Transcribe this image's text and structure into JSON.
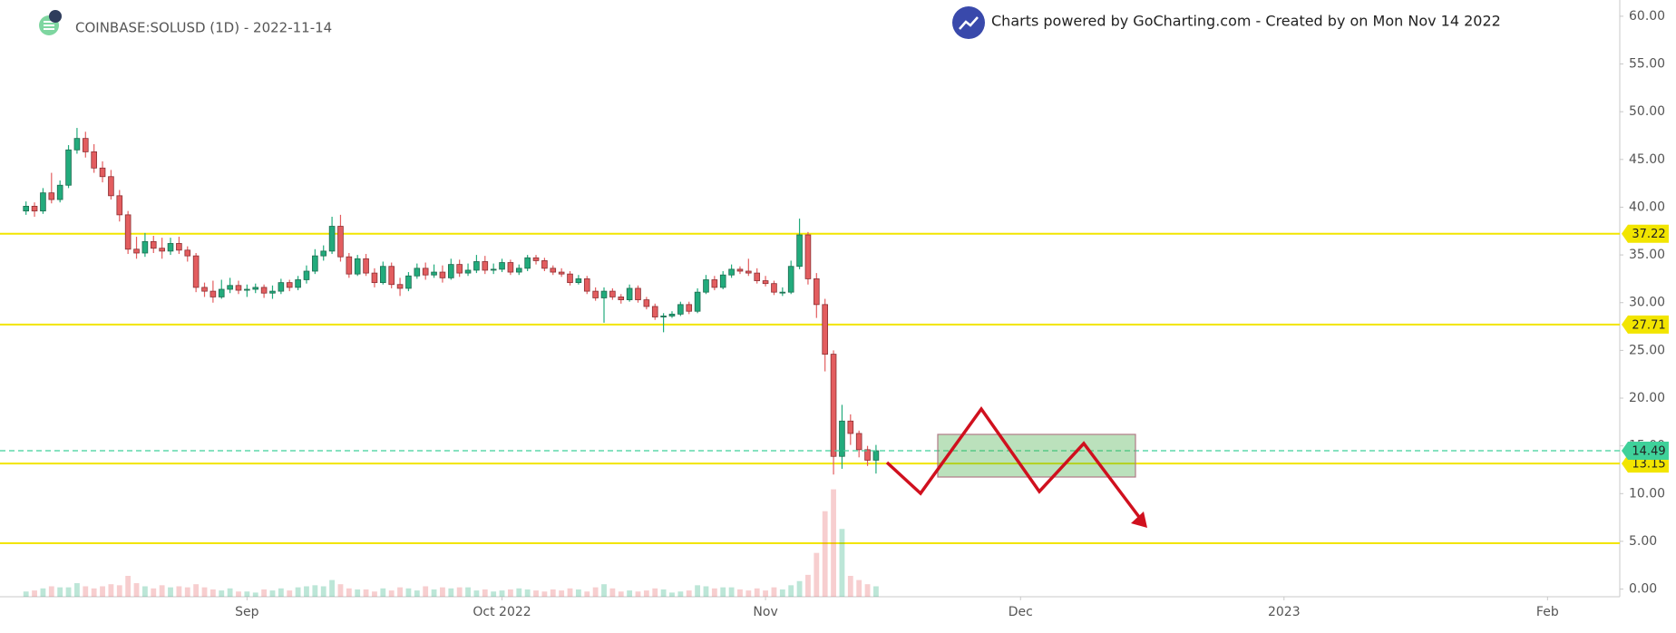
{
  "chart_data": {
    "type": "candlestick",
    "title": "COINBASE:SOLUSD (1D) - 2022-11-14",
    "subtitle": "Charts powered by GoCharting.com - Created by  on Mon Nov 14 2022",
    "up_color": "#22ab7c",
    "down_color": "#e35d5f",
    "level_color": "#f2e500",
    "last_color": "#3fd19a",
    "ylim": [
      -0.8,
      61.7
    ],
    "yticks": [
      {
        "value": 0,
        "label": "0.00"
      },
      {
        "value": 5,
        "label": "5.00"
      },
      {
        "value": 10,
        "label": "10.00"
      },
      {
        "value": 15,
        "label": "15.00"
      },
      {
        "value": 20,
        "label": "20.00"
      },
      {
        "value": 25,
        "label": "25.00"
      },
      {
        "value": 30,
        "label": "30.00"
      },
      {
        "value": 35,
        "label": "35.00"
      },
      {
        "value": 40,
        "label": "40.00"
      },
      {
        "value": 45,
        "label": "45.00"
      },
      {
        "value": 50,
        "label": "50.00"
      },
      {
        "value": 55,
        "label": "55.00"
      },
      {
        "value": 60,
        "label": "60.00"
      }
    ],
    "levels": [
      37.22,
      27.71,
      13.15
    ],
    "support_line": 4.8,
    "categories": [
      null,
      null,
      null,
      null,
      null,
      null,
      null,
      null,
      null,
      null,
      null,
      null,
      null,
      null,
      null,
      null,
      null,
      null,
      null,
      null,
      null,
      null,
      null,
      null,
      null,
      null,
      "Sep",
      null,
      null,
      null,
      null,
      null,
      null,
      null,
      null,
      null,
      null,
      null,
      null,
      null,
      null,
      null,
      null,
      null,
      null,
      null,
      null,
      null,
      null,
      null,
      null,
      null,
      null,
      null,
      null,
      null,
      "Oct 2022",
      null,
      null,
      null,
      null,
      null,
      null,
      null,
      null,
      null,
      null,
      null,
      null,
      null,
      null,
      null,
      null,
      null,
      null,
      null,
      null,
      null,
      null,
      null,
      null,
      null,
      null,
      null,
      null,
      null,
      null,
      "Nov",
      null,
      null,
      null,
      null,
      null,
      null,
      null,
      null,
      null,
      null,
      null,
      null,
      null,
      null,
      null,
      null,
      null,
      null,
      null,
      null,
      null,
      null,
      null,
      null,
      null,
      null,
      null,
      null,
      null,
      "Dec",
      null,
      null,
      null,
      null,
      null,
      null,
      null,
      null,
      null,
      null,
      null,
      null,
      null,
      null,
      null,
      null,
      null,
      null,
      null,
      null,
      null,
      null,
      null,
      null,
      null,
      null,
      null,
      null,
      null,
      null,
      "2023",
      null,
      null,
      null,
      null,
      null,
      null,
      null,
      null,
      null,
      null,
      null,
      null,
      null,
      null,
      null,
      null,
      null,
      null,
      null,
      null,
      null,
      null,
      null,
      null,
      null,
      null,
      null,
      null,
      null,
      null,
      "Feb",
      null,
      null,
      null,
      null,
      null,
      null,
      null,
      null
    ],
    "open": [
      39.6,
      40.1,
      39.6,
      41.5,
      40.8,
      42.3,
      46.0,
      47.2,
      45.8,
      44.1,
      43.2,
      41.2,
      39.2,
      35.6,
      35.2,
      36.4,
      35.7,
      35.4,
      36.2,
      35.5,
      34.9,
      31.6,
      31.2,
      30.6,
      31.4,
      31.8,
      31.3,
      31.4,
      31.6,
      31.0,
      31.2,
      32.1,
      31.6,
      32.4,
      33.3,
      34.9,
      35.4,
      38.0,
      34.8,
      33.0,
      34.6,
      33.1,
      32.1,
      33.8,
      31.9,
      31.5,
      32.8,
      33.6,
      32.9,
      33.2,
      32.6,
      34.0,
      33.1,
      33.4,
      34.3,
      33.4,
      33.5,
      34.2,
      33.2,
      33.6,
      34.7,
      34.4,
      33.6,
      33.2,
      33.0,
      32.1,
      32.5,
      31.2,
      30.5,
      31.2,
      30.6,
      30.3,
      31.5,
      30.3,
      29.6,
      28.5,
      28.6,
      28.8,
      29.8,
      29.1,
      31.1,
      32.4,
      31.6,
      32.9,
      33.5,
      33.3,
      33.1,
      32.3,
      32.0,
      31.1,
      31.1,
      33.8,
      37.1,
      32.5,
      29.8,
      24.6,
      13.9,
      17.6,
      16.3,
      14.6,
      13.5,
      null,
      null,
      null,
      null,
      null,
      null,
      null,
      null,
      null,
      null,
      null,
      null,
      null,
      null,
      null,
      null,
      null,
      null,
      null,
      null,
      null,
      null,
      null,
      null,
      null,
      null,
      null,
      null,
      null,
      null,
      null,
      null,
      null,
      null,
      null,
      null,
      null,
      null,
      null,
      null,
      null,
      null,
      null,
      null,
      null,
      null,
      null,
      null,
      null,
      null,
      null,
      null,
      null,
      null,
      null,
      null,
      null,
      null,
      null,
      null,
      null,
      null,
      null,
      null,
      null,
      null,
      null,
      null,
      null,
      null,
      null,
      null,
      null,
      null,
      null,
      null,
      null,
      null,
      null,
      null,
      null,
      null,
      null,
      null,
      null,
      null,
      null
    ],
    "high": [
      40.6,
      40.5,
      42.0,
      43.6,
      42.8,
      46.5,
      48.3,
      47.9,
      46.6,
      44.8,
      43.9,
      41.8,
      39.6,
      36.9,
      37.3,
      37.0,
      36.8,
      36.8,
      36.9,
      35.9,
      35.2,
      32.1,
      32.3,
      32.4,
      32.6,
      32.3,
      31.9,
      32.0,
      31.9,
      31.8,
      32.5,
      32.4,
      32.8,
      33.9,
      35.6,
      36.0,
      39.0,
      39.2,
      35.2,
      35.0,
      35.1,
      33.6,
      34.3,
      34.2,
      32.6,
      33.2,
      34.1,
      34.2,
      34.0,
      33.9,
      34.6,
      34.5,
      34.1,
      35.0,
      34.9,
      34.1,
      34.6,
      34.5,
      34.0,
      35.0,
      35.0,
      34.7,
      33.9,
      33.6,
      33.3,
      32.9,
      32.8,
      31.6,
      31.6,
      31.5,
      30.9,
      31.9,
      31.8,
      30.6,
      29.9,
      28.9,
      29.1,
      30.1,
      30.1,
      31.5,
      32.9,
      32.8,
      33.3,
      34.0,
      33.8,
      34.6,
      33.6,
      32.8,
      32.3,
      31.6,
      34.4,
      38.8,
      37.4,
      33.1,
      30.4,
      25.0,
      19.3,
      18.3,
      16.6,
      15.0,
      15.1,
      null,
      null,
      null,
      null,
      null,
      null,
      null,
      null,
      null,
      null,
      null,
      null,
      null,
      null,
      null,
      null,
      null,
      null,
      null,
      null,
      null,
      null,
      null,
      null,
      null,
      null,
      null,
      null,
      null,
      null,
      null,
      null,
      null,
      null,
      null,
      null,
      null,
      null,
      null,
      null,
      null,
      null,
      null,
      null,
      null,
      null,
      null,
      null,
      null,
      null,
      null,
      null,
      null,
      null,
      null,
      null,
      null,
      null,
      null,
      null,
      null,
      null,
      null,
      null,
      null,
      null,
      null,
      null,
      null,
      null,
      null,
      null,
      null,
      null,
      null,
      null,
      null,
      null,
      null,
      null,
      null,
      null,
      null,
      null,
      null,
      null,
      null
    ],
    "low": [
      39.2,
      39.0,
      39.3,
      40.4,
      40.5,
      42.0,
      45.6,
      45.2,
      43.6,
      42.6,
      40.8,
      38.5,
      35.1,
      34.6,
      34.8,
      35.2,
      34.6,
      35.0,
      35.1,
      34.3,
      31.1,
      30.6,
      30.0,
      30.4,
      31.0,
      30.9,
      30.6,
      31.0,
      30.5,
      30.4,
      30.9,
      31.2,
      31.3,
      32.0,
      33.0,
      34.4,
      35.1,
      34.3,
      32.6,
      32.8,
      32.8,
      31.6,
      31.9,
      31.5,
      30.7,
      31.2,
      32.5,
      32.4,
      32.6,
      32.1,
      32.4,
      32.7,
      32.8,
      33.1,
      33.0,
      33.0,
      33.2,
      32.9,
      32.9,
      33.3,
      34.0,
      33.3,
      32.9,
      32.7,
      31.8,
      31.9,
      30.9,
      30.2,
      27.9,
      30.3,
      29.9,
      30.1,
      30.0,
      29.3,
      28.2,
      26.9,
      28.4,
      28.6,
      28.8,
      28.9,
      30.9,
      31.3,
      31.4,
      32.6,
      33.0,
      32.8,
      32.0,
      31.7,
      30.8,
      30.7,
      30.9,
      33.5,
      31.9,
      28.4,
      22.8,
      12.0,
      12.6,
      15.1,
      13.8,
      12.9,
      12.1,
      null,
      null,
      null,
      null,
      null,
      null,
      null,
      null,
      null,
      null,
      null,
      null,
      null,
      null,
      null,
      null,
      null,
      null,
      null,
      null,
      null,
      null,
      null,
      null,
      null,
      null,
      null,
      null,
      null,
      null,
      null,
      null,
      null,
      null,
      null,
      null,
      null,
      null,
      null,
      null,
      null,
      null,
      null,
      null,
      null,
      null,
      null,
      null,
      null,
      null,
      null,
      null,
      null,
      null,
      null,
      null,
      null,
      null,
      null,
      null,
      null,
      null,
      null,
      null,
      null,
      null,
      null,
      null,
      null,
      null,
      null,
      null,
      null,
      null,
      null,
      null,
      null,
      null,
      null,
      null,
      null,
      null,
      null,
      null,
      null,
      null,
      null
    ],
    "close": [
      40.1,
      39.6,
      41.5,
      40.8,
      42.3,
      46.0,
      47.2,
      45.8,
      44.1,
      43.2,
      41.2,
      39.2,
      35.6,
      35.2,
      36.4,
      35.7,
      35.4,
      36.2,
      35.5,
      34.9,
      31.6,
      31.2,
      30.6,
      31.4,
      31.8,
      31.3,
      31.4,
      31.6,
      31.0,
      31.2,
      32.1,
      31.6,
      32.4,
      33.3,
      34.9,
      35.4,
      38.0,
      34.8,
      33.0,
      34.6,
      33.1,
      32.1,
      33.8,
      31.9,
      31.5,
      32.8,
      33.6,
      32.9,
      33.2,
      32.6,
      34.0,
      33.1,
      33.4,
      34.3,
      33.4,
      33.5,
      34.2,
      33.2,
      33.6,
      34.7,
      34.4,
      33.6,
      33.2,
      33.0,
      32.1,
      32.5,
      31.2,
      30.5,
      31.2,
      30.6,
      30.3,
      31.5,
      30.3,
      29.6,
      28.5,
      28.6,
      28.8,
      29.8,
      29.1,
      31.1,
      32.4,
      31.6,
      32.9,
      33.5,
      33.3,
      33.1,
      32.3,
      32.0,
      31.1,
      31.1,
      33.8,
      37.1,
      32.5,
      29.8,
      24.6,
      13.9,
      17.6,
      16.3,
      14.6,
      13.5,
      14.49,
      null,
      null,
      null,
      null,
      null,
      null,
      null,
      null,
      null,
      null,
      null,
      null,
      null,
      null,
      null,
      null,
      null,
      null,
      null,
      null,
      null,
      null,
      null,
      null,
      null,
      null,
      null,
      null,
      null,
      null,
      null,
      null,
      null,
      null,
      null,
      null,
      null,
      null,
      null,
      null,
      null,
      null,
      null,
      null,
      null,
      null,
      null,
      null,
      null,
      null,
      null,
      null,
      null,
      null,
      null,
      null,
      null,
      null,
      null,
      null,
      null,
      null,
      null,
      null,
      null,
      null,
      null,
      null,
      null,
      null,
      null,
      null,
      null,
      null,
      null,
      null,
      null,
      null,
      null,
      null,
      null,
      null,
      null,
      null,
      null,
      null,
      null
    ],
    "volume": [
      0.5,
      0.6,
      0.8,
      1.0,
      0.9,
      0.9,
      1.3,
      1.0,
      0.8,
      1.0,
      1.2,
      1.1,
      2.0,
      1.3,
      1.0,
      0.8,
      1.1,
      0.9,
      1.0,
      0.9,
      1.2,
      0.9,
      0.7,
      0.6,
      0.8,
      0.5,
      0.5,
      0.4,
      0.7,
      0.6,
      0.8,
      0.6,
      0.9,
      1.0,
      1.1,
      1.0,
      1.6,
      1.2,
      0.8,
      0.7,
      0.7,
      0.5,
      0.8,
      0.6,
      0.9,
      0.8,
      0.6,
      1.0,
      0.7,
      0.9,
      0.8,
      0.9,
      0.9,
      0.6,
      0.7,
      0.5,
      0.6,
      0.7,
      0.8,
      0.7,
      0.6,
      0.5,
      0.7,
      0.6,
      0.8,
      0.7,
      0.5,
      0.9,
      1.2,
      0.8,
      0.5,
      0.6,
      0.5,
      0.6,
      0.8,
      0.7,
      0.4,
      0.5,
      0.6,
      1.1,
      1.0,
      0.8,
      0.9,
      0.9,
      0.7,
      0.6,
      0.8,
      0.6,
      0.9,
      0.7,
      1.1,
      1.5,
      2.1,
      4.2,
      8.2,
      10.3,
      6.5,
      2.0,
      1.6,
      1.2,
      1.0,
      null,
      null,
      null,
      null,
      null,
      null,
      null,
      null,
      null,
      null,
      null,
      null,
      null,
      null,
      null,
      null,
      null,
      null,
      null,
      null,
      null,
      null,
      null,
      null,
      null,
      null,
      null,
      null,
      null,
      null,
      null,
      null,
      null,
      null,
      null,
      null,
      null,
      null,
      null,
      null,
      null,
      null,
      null,
      null,
      null,
      null,
      null,
      null,
      null,
      null,
      null,
      null,
      null,
      null,
      null,
      null,
      null,
      null,
      null,
      null,
      null,
      null,
      null,
      null,
      null,
      null,
      null,
      null,
      null,
      null,
      null,
      null,
      null,
      null,
      null,
      null,
      null,
      null,
      null,
      null,
      null,
      null,
      null,
      null,
      null,
      null,
      null
    ]
  }
}
